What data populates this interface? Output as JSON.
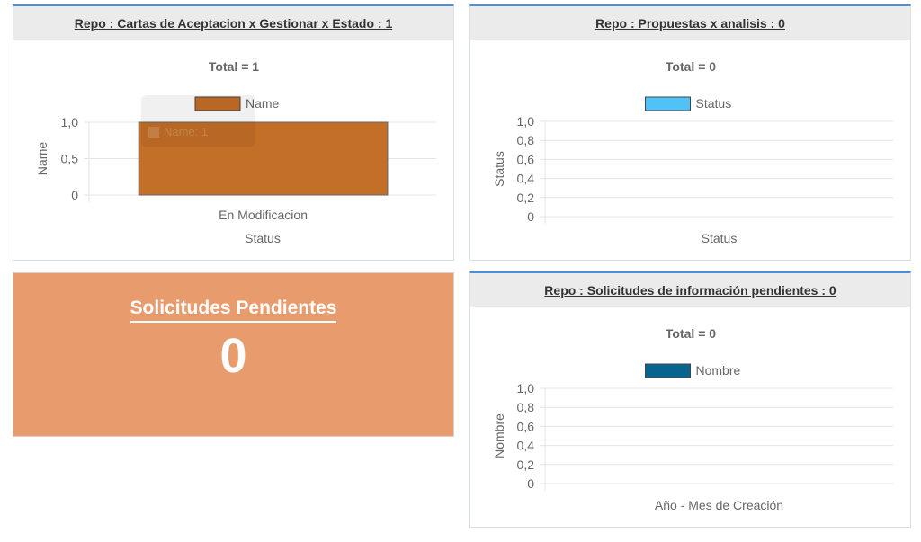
{
  "panels": [
    {
      "title": "Repo : Cartas de Aceptacion x Gestionar x Estado : 1",
      "chart_data": {
        "type": "bar",
        "title": "Total = 1",
        "legend": {
          "label": "Name",
          "color": "#c46f27",
          "position": "top"
        },
        "categories": [
          "En Modificacion"
        ],
        "series": [
          {
            "name": "Name",
            "values": [
              1
            ]
          }
        ],
        "xlabel": "Status",
        "ylabel": "Name",
        "ylim": [
          0,
          1
        ],
        "yticks": [
          "0",
          "0,5",
          "1,0"
        ],
        "grid": true,
        "tooltip": "Name: 1"
      }
    },
    {
      "title": "Repo : Propuestas x analisis : 0",
      "chart_data": {
        "type": "bar",
        "title": "Total = 0",
        "legend": {
          "label": "Status",
          "color": "#4fc3f7",
          "position": "top"
        },
        "categories": [],
        "series": [
          {
            "name": "Status",
            "values": []
          }
        ],
        "xlabel": "Status",
        "ylabel": "Status",
        "ylim": [
          0,
          1
        ],
        "yticks": [
          "0",
          "0,2",
          "0,4",
          "0,6",
          "0,8",
          "1,0"
        ],
        "grid": true
      }
    },
    {
      "title": "Repo : Solicitudes de información pendientes : 0",
      "chart_data": {
        "type": "bar",
        "title": "Total = 0",
        "legend": {
          "label": "Nombre",
          "color": "#07648f",
          "position": "top"
        },
        "categories": [],
        "series": [
          {
            "name": "Nombre",
            "values": []
          }
        ],
        "xlabel": "Año - Mes de Creación",
        "ylabel": "Nombre",
        "ylim": [
          0,
          1
        ],
        "yticks": [
          "0",
          "0,2",
          "0,4",
          "0,6",
          "0,8",
          "1,0"
        ],
        "grid": true
      }
    }
  ],
  "stat_card": {
    "label": "Solicitudes Pendientes",
    "value": "0",
    "color": "#e89c6e"
  }
}
